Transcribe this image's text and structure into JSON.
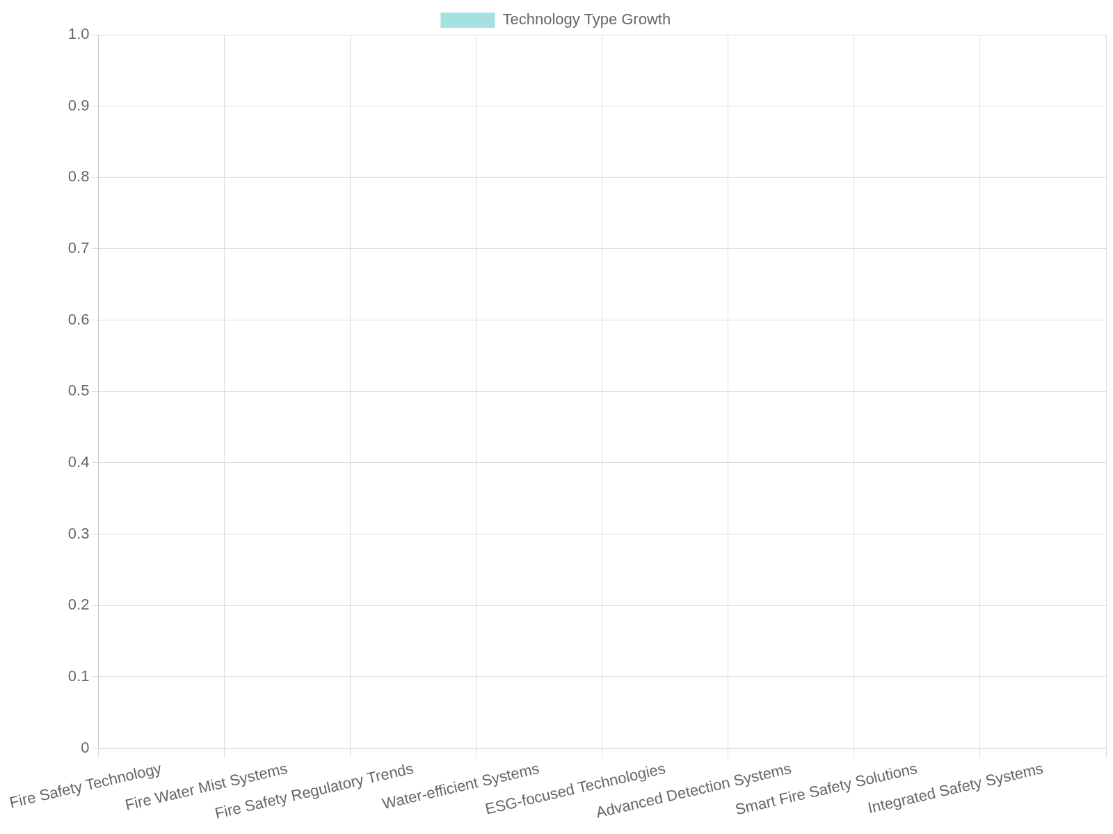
{
  "chart_data": {
    "type": "bar",
    "categories": [
      "Fire Safety Technology",
      "Fire Water Mist Systems",
      "Fire Safety Regulatory Trends",
      "Water-efficient Systems",
      "ESG-focused Technologies",
      "Advanced Detection Systems",
      "Smart Fire Safety Solutions",
      "Integrated Safety Systems"
    ],
    "series": [
      {
        "name": "Technology Type Growth",
        "color": "#a6e0e0",
        "values": [
          null,
          null,
          null,
          null,
          null,
          null,
          null,
          null
        ]
      }
    ],
    "ylim": [
      0,
      1
    ],
    "yticks": [
      0,
      0.1,
      0.2,
      0.3,
      0.4,
      0.5,
      0.6,
      0.7,
      0.8,
      0.9,
      {
        "value": 1,
        "label": "1.0"
      }
    ],
    "grid": true,
    "legend": "top"
  }
}
